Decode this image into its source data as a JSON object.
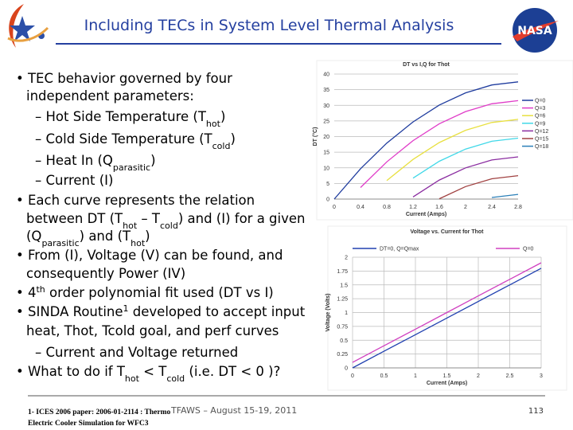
{
  "header": {
    "title": "Including TECs in System Level Thermal Analysis",
    "logo_text": "NASA"
  },
  "body": {
    "lines": [
      [
        {
          "t": "• TEC behavior governed by four"
        }
      ],
      [
        {
          "t": "independent parameters:"
        }
      ],
      [
        {
          "t": "– Hot Side Temperature (T"
        },
        {
          "sub": "hot"
        },
        {
          "t": ")"
        }
      ],
      [
        {
          "t": "– Cold Side Temperature (T"
        },
        {
          "sub": "cold"
        },
        {
          "t": ")"
        }
      ],
      [
        {
          "t": "– Heat In (Q"
        },
        {
          "sub": "parasitic"
        },
        {
          "t": ")"
        }
      ],
      [
        {
          "t": "– Current (I)"
        }
      ],
      [
        {
          "t": "• Each curve represents the relation"
        }
      ],
      [
        {
          "t": "between DT (T"
        },
        {
          "sub": "hot"
        },
        {
          "t": " – T"
        },
        {
          "sub": "cold"
        },
        {
          "t": ") and (I) for a given"
        }
      ],
      [
        {
          "t": "(Q"
        },
        {
          "sub": "parasitic"
        },
        {
          "t": ") and (T"
        },
        {
          "sub": "hot"
        },
        {
          "t": ")"
        }
      ],
      [
        {
          "t": "• From (I), Voltage (V) can be found, and"
        }
      ],
      [
        {
          "t": "consequently Power (IV)"
        }
      ],
      [
        {
          "t": "• 4"
        },
        {
          "sup": "th"
        },
        {
          "t": " order polynomial fit used (DT vs I)"
        }
      ],
      [
        {
          "t": "• SINDA Routine"
        },
        {
          "sup": "1"
        },
        {
          "t": " developed to accept input"
        }
      ],
      [
        {
          "t": "heat, Thot, Tcold goal, and perf curves"
        }
      ],
      [
        {
          "t": "– Current and Voltage returned"
        }
      ],
      [
        {
          "t": "• What to do if T"
        },
        {
          "sub": "hot"
        },
        {
          "t": " < T"
        },
        {
          "sub": "cold"
        },
        {
          "t": " (i.e. DT < 0 )?"
        }
      ]
    ]
  },
  "charts": [
    {
      "type": "line",
      "title": "DT vs I,Q for Thot",
      "x_label": "Current (Amps)",
      "y_label": "DT (°C)",
      "x": [
        0,
        0.4,
        0.8,
        1.2,
        1.6,
        2,
        2.4,
        2.8
      ],
      "xlim": [
        0,
        2.8
      ],
      "xticks": [
        0,
        0.4,
        0.8,
        1.2,
        1.6,
        2,
        2.4,
        2.8
      ],
      "ylim": [
        0,
        40
      ],
      "yticks": [
        0,
        5,
        10,
        15,
        20,
        25,
        30,
        35,
        40
      ],
      "grid": "y",
      "legend": "right",
      "series": [
        {
          "name": "Q=0",
          "color": "#1f3c9e",
          "values": [
            0,
            9.7,
            17.9,
            24.7,
            30.1,
            34.0,
            36.5,
            37.5
          ]
        },
        {
          "name": "Q=3",
          "color": "#e03cc8",
          "values": [
            null,
            3.7,
            11.9,
            18.7,
            24.1,
            28.0,
            30.5,
            31.5
          ]
        },
        {
          "name": "Q=6",
          "color": "#e8e040",
          "values": [
            null,
            null,
            5.9,
            12.7,
            18.1,
            22.0,
            24.5,
            25.5
          ]
        },
        {
          "name": "Q=9",
          "color": "#40d8e8",
          "values": [
            null,
            null,
            null,
            6.7,
            12.1,
            16.0,
            18.5,
            19.5
          ]
        },
        {
          "name": "Q=12",
          "color": "#8a2ca0",
          "values": [
            null,
            null,
            null,
            0.7,
            6.1,
            10.0,
            12.5,
            13.5
          ]
        },
        {
          "name": "Q=15",
          "color": "#a04040",
          "values": [
            null,
            null,
            null,
            null,
            0.1,
            4.0,
            6.5,
            7.5
          ]
        },
        {
          "name": "Q=18",
          "color": "#2a7fb8",
          "values": [
            null,
            null,
            null,
            null,
            null,
            null,
            0.5,
            1.5
          ]
        }
      ]
    },
    {
      "type": "line",
      "title": "Voltage vs. Current for Thot",
      "x_label": "Current (Amps)",
      "y_label": "Voltage (Volts)",
      "x": [
        0,
        0.5,
        1,
        1.5,
        2,
        2.5,
        3
      ],
      "xlim": [
        0,
        3
      ],
      "xticks": [
        0,
        0.5,
        1,
        1.5,
        2,
        2.5,
        3
      ],
      "ylim": [
        0,
        2
      ],
      "yticks": [
        0,
        0.25,
        0.5,
        0.75,
        1,
        1.25,
        1.5,
        1.75,
        2
      ],
      "grid": "both",
      "legend": "top",
      "series": [
        {
          "name": "DT=0, Q=Qmax",
          "color": "#2040b0",
          "values": [
            0,
            0.3,
            0.6,
            0.9,
            1.2,
            1.5,
            1.8
          ]
        },
        {
          "name": "Q=0",
          "color": "#d040c0",
          "values": [
            0.1,
            0.4,
            0.7,
            1.0,
            1.3,
            1.6,
            1.9
          ]
        }
      ]
    }
  ],
  "footer": {
    "reference": [
      "1- ICES 2006 paper: 2006-01-2114 : Thermo",
      "Electric Cooler Simulation for WFC3"
    ],
    "event": "TFAWS – August 15-19, 2011",
    "page": "113"
  }
}
